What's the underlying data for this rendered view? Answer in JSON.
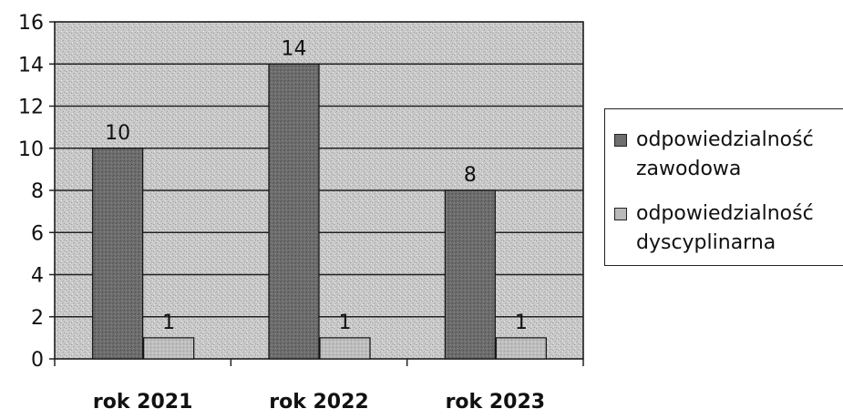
{
  "chart_data": {
    "type": "bar",
    "categories": [
      "rok 2021",
      "rok 2022",
      "rok 2023"
    ],
    "series": [
      {
        "name": "odpowiedzialność zawodowa",
        "values": [
          10,
          14,
          8
        ],
        "color": "#6e6e6e"
      },
      {
        "name": "odpowiedzialność dyscyplinarna",
        "values": [
          1,
          1,
          1
        ],
        "color": "#b9b9b9"
      }
    ],
    "yticks": [
      0,
      2,
      4,
      6,
      8,
      10,
      12,
      14,
      16
    ],
    "ylim": [
      0,
      16
    ],
    "grid": true,
    "legend": "right",
    "legend_lines": [
      [
        "odpowiedzialność",
        "zawodowa"
      ],
      [
        "odpowiedzialność",
        "dyscyplinarna"
      ]
    ],
    "plot_background": "#c8c8c8"
  }
}
